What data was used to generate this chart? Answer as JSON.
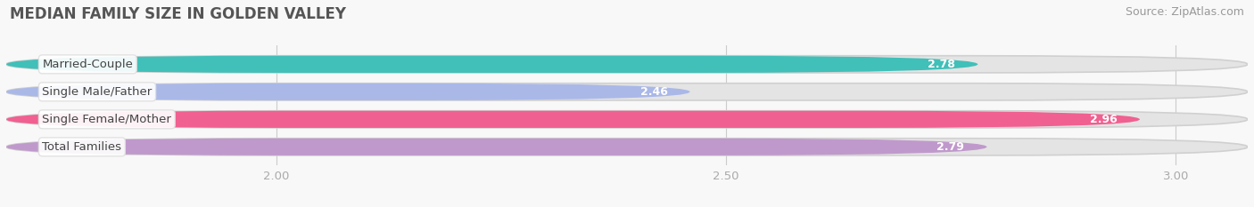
{
  "title": "MEDIAN FAMILY SIZE IN GOLDEN VALLEY",
  "source": "Source: ZipAtlas.com",
  "categories": [
    "Married-Couple",
    "Single Male/Father",
    "Single Female/Mother",
    "Total Families"
  ],
  "values": [
    2.78,
    2.46,
    2.96,
    2.79
  ],
  "bar_colors": [
    "#40c0b8",
    "#aab8e8",
    "#f06090",
    "#c099cc"
  ],
  "xlim": [
    1.7,
    3.08
  ],
  "xstart": 1.7,
  "xticks": [
    2.0,
    2.5,
    3.0
  ],
  "background_color": "#f8f8f8",
  "bar_bg_color": "#e4e4e4",
  "title_fontsize": 12,
  "label_fontsize": 9.5,
  "value_fontsize": 9,
  "source_fontsize": 9,
  "bar_height": 0.62,
  "title_color": "#555555",
  "label_color": "#444444",
  "value_color": "#ffffff",
  "source_color": "#999999",
  "tick_color": "#aaaaaa",
  "grid_color": "#cccccc"
}
